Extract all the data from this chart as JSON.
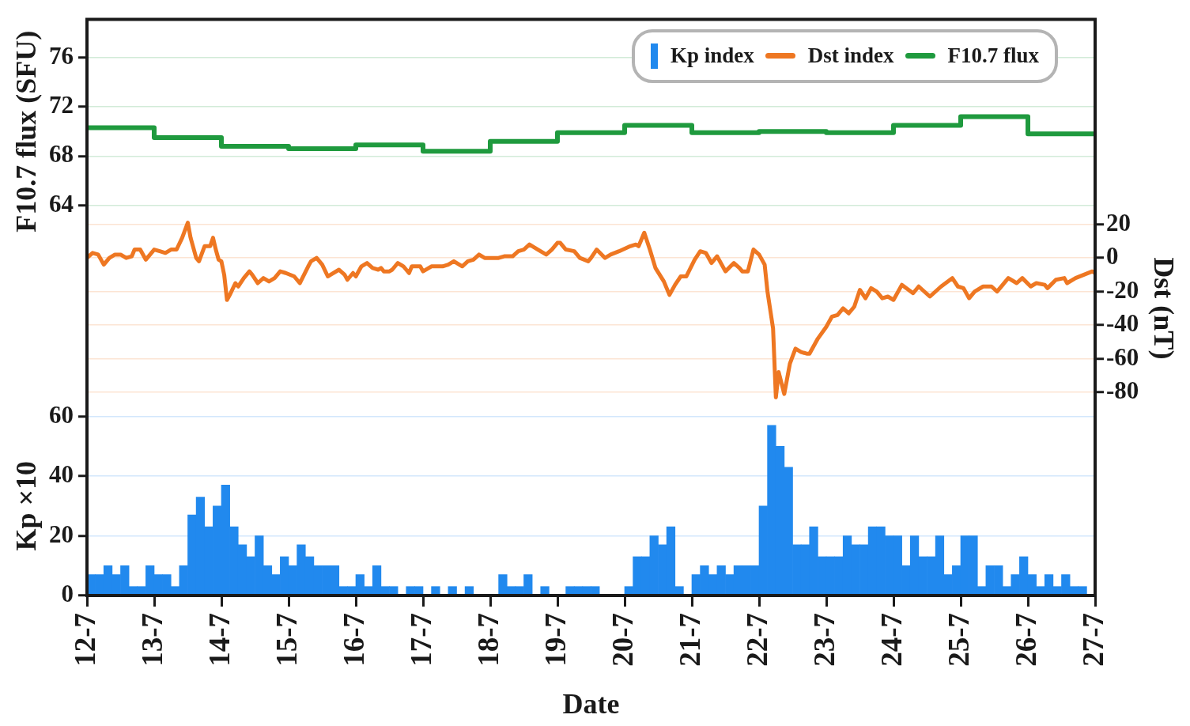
{
  "chart_data": {
    "type": "bar",
    "xlabel": "Date",
    "ylabel": "Kp ×10",
    "y2label": "Dst (nT)",
    "y3label": "F10.7 flux (SFU)",
    "xlim": [
      "--07-12",
      "--07-27"
    ],
    "xticks": [
      {
        "value": "--07-12",
        "label": "12-7"
      },
      {
        "value": "--07-13",
        "label": "13-7"
      },
      {
        "value": "--07-14",
        "label": "14-7"
      },
      {
        "value": "--07-15",
        "label": "15-7"
      },
      {
        "value": "--07-16",
        "label": "16-7"
      },
      {
        "value": "--07-17",
        "label": "17-7"
      },
      {
        "value": "--07-18",
        "label": "18-7"
      },
      {
        "value": "--07-19",
        "label": "19-7"
      },
      {
        "value": "--07-20",
        "label": "20-7"
      },
      {
        "value": "--07-21",
        "label": "21-7"
      },
      {
        "value": "--07-22",
        "label": "22-7"
      },
      {
        "value": "--07-23",
        "label": "23-7"
      },
      {
        "value": "--07-24",
        "label": "24-7"
      },
      {
        "value": "--07-25",
        "label": "25-7"
      },
      {
        "value": "--07-26",
        "label": "26-7"
      },
      {
        "value": "--07-27",
        "label": "27-7"
      }
    ],
    "ylim": [
      0,
      193
    ],
    "yticks": [
      0,
      20,
      40,
      60
    ],
    "y2lim": [
      -201,
      142
    ],
    "y2ticks": [
      -80,
      -60,
      -40,
      -20,
      0,
      20
    ],
    "y3lim": [
      32.3,
      79.1
    ],
    "y3ticks": [
      64,
      68,
      72,
      76
    ],
    "grid": "y",
    "legend": "top right",
    "series": [
      {
        "name": "Kp index",
        "color": "#2189ee",
        "x": [
          "--07-12T01:30",
          "--07-12T04:30",
          "--07-12T07:30",
          "--07-12T10:30",
          "--07-12T13:30",
          "--07-12T16:30",
          "--07-12T19:30",
          "--07-12T22:30",
          "--07-13T01:30",
          "--07-13T04:30",
          "--07-13T07:30",
          "--07-13T10:30",
          "--07-13T13:30",
          "--07-13T16:30",
          "--07-13T19:30",
          "--07-13T22:30",
          "--07-14T01:30",
          "--07-14T04:30",
          "--07-14T07:30",
          "--07-14T10:30",
          "--07-14T13:30",
          "--07-14T16:30",
          "--07-14T19:30",
          "--07-14T22:30",
          "--07-15T01:30",
          "--07-15T04:30",
          "--07-15T07:30",
          "--07-15T10:30",
          "--07-15T13:30",
          "--07-15T16:30",
          "--07-15T19:30",
          "--07-15T22:30",
          "--07-16T01:30",
          "--07-16T04:30",
          "--07-16T07:30",
          "--07-16T10:30",
          "--07-16T13:30",
          "--07-16T16:30",
          "--07-16T19:30",
          "--07-16T22:30",
          "--07-17T01:30",
          "--07-17T04:30",
          "--07-17T07:30",
          "--07-17T10:30",
          "--07-17T13:30",
          "--07-17T16:30",
          "--07-17T19:30",
          "--07-17T22:30",
          "--07-18T01:30",
          "--07-18T04:30",
          "--07-18T07:30",
          "--07-18T10:30",
          "--07-18T13:30",
          "--07-18T16:30",
          "--07-18T19:30",
          "--07-18T22:30",
          "--07-19T01:30",
          "--07-19T04:30",
          "--07-19T07:30",
          "--07-19T10:30",
          "--07-19T13:30",
          "--07-19T16:30",
          "--07-19T19:30",
          "--07-19T22:30",
          "--07-20T01:30",
          "--07-20T04:30",
          "--07-20T07:30",
          "--07-20T10:30",
          "--07-20T13:30",
          "--07-20T16:30",
          "--07-20T19:30",
          "--07-20T22:30",
          "--07-21T01:30",
          "--07-21T04:30",
          "--07-21T07:30",
          "--07-21T10:30",
          "--07-21T13:30",
          "--07-21T16:30",
          "--07-21T19:30",
          "--07-21T22:30",
          "--07-22T01:30",
          "--07-22T04:30",
          "--07-22T07:30",
          "--07-22T10:30",
          "--07-22T13:30",
          "--07-22T16:30",
          "--07-22T19:30",
          "--07-22T22:30",
          "--07-23T01:30",
          "--07-23T04:30",
          "--07-23T07:30",
          "--07-23T10:30",
          "--07-23T13:30",
          "--07-23T16:30",
          "--07-23T19:30",
          "--07-23T22:30",
          "--07-24T01:30",
          "--07-24T04:30",
          "--07-24T07:30",
          "--07-24T10:30",
          "--07-24T13:30",
          "--07-24T16:30",
          "--07-24T19:30",
          "--07-24T22:30",
          "--07-25T01:30",
          "--07-25T04:30",
          "--07-25T07:30",
          "--07-25T10:30",
          "--07-25T13:30",
          "--07-25T16:30",
          "--07-25T19:30",
          "--07-25T22:30",
          "--07-26T01:30",
          "--07-26T04:30",
          "--07-26T07:30",
          "--07-26T10:30",
          "--07-26T13:30",
          "--07-26T16:30",
          "--07-26T19:30",
          "--07-26T22:30"
        ],
        "values": [
          7,
          7,
          10,
          7,
          10,
          3,
          3,
          10,
          7,
          7,
          3,
          10,
          27,
          33,
          23,
          30,
          37,
          23,
          17,
          13,
          20,
          10,
          7,
          13,
          10,
          17,
          13,
          10,
          10,
          10,
          3,
          3,
          7,
          3,
          10,
          3,
          3,
          0,
          3,
          3,
          0,
          3,
          0,
          3,
          0,
          3,
          0,
          0,
          0,
          7,
          3,
          3,
          7,
          0,
          3,
          0,
          0,
          3,
          3,
          3,
          3,
          0,
          0,
          0,
          3,
          13,
          13,
          20,
          17,
          23,
          3,
          0,
          7,
          10,
          7,
          10,
          7,
          10,
          10,
          10,
          30,
          57,
          50,
          43,
          17,
          17,
          23,
          13,
          13,
          13,
          20,
          17,
          17,
          23,
          23,
          20,
          20,
          10,
          20,
          13,
          13,
          20,
          7,
          10,
          20,
          20,
          3,
          10,
          10,
          3,
          7,
          13,
          7,
          3,
          7,
          3,
          7,
          3,
          3,
          0
        ]
      },
      {
        "name": "Dst index",
        "type": "line",
        "axis": "y2",
        "color": "#ee7722",
        "x": [
          "--07-12T00:00",
          "--07-12T02:00",
          "--07-12T04:00",
          "--07-12T06:00",
          "--07-12T08:00",
          "--07-12T10:00",
          "--07-12T12:00",
          "--07-12T14:00",
          "--07-12T16:00",
          "--07-12T17:00",
          "--07-12T19:00",
          "--07-12T21:00",
          "--07-12T23:00",
          "--07-13T00:00",
          "--07-13T02:00",
          "--07-13T04:00",
          "--07-13T06:00",
          "--07-13T08:00",
          "--07-13T10:00",
          "--07-13T12:00",
          "--07-13T13:00",
          "--07-13T15:00",
          "--07-13T16:00",
          "--07-13T18:00",
          "--07-13T20:00",
          "--07-13T21:00",
          "--07-13T22:00",
          "--07-13T23:00",
          "--07-14T00:00",
          "--07-14T01:00",
          "--07-14T02:00",
          "--07-14T03:00",
          "--07-14T05:00",
          "--07-14T06:00",
          "--07-14T08:00",
          "--07-14T10:00",
          "--07-14T11:00",
          "--07-14T13:00",
          "--07-14T15:00",
          "--07-14T17:00",
          "--07-14T19:00",
          "--07-14T21:00",
          "--07-14T23:00",
          "--07-15T02:00",
          "--07-15T04:00",
          "--07-15T07:00",
          "--07-15T08:00",
          "--07-15T10:00",
          "--07-15T12:00",
          "--07-15T14:00",
          "--07-15T15:00",
          "--07-15T18:00",
          "--07-15T20:00",
          "--07-15T21:00",
          "--07-15T23:00",
          "--07-16T00:00",
          "--07-16T02:00",
          "--07-16T04:00",
          "--07-16T06:00",
          "--07-16T08:00",
          "--07-16T09:00",
          "--07-16T10:00",
          "--07-16T12:00",
          "--07-16T13:00",
          "--07-16T15:00",
          "--07-16T17:00",
          "--07-16T19:00",
          "--07-16T20:00",
          "--07-16T23:00",
          "--07-17T00:00",
          "--07-17T03:00",
          "--07-17T07:00",
          "--07-17T09:00",
          "--07-17T11:00",
          "--07-17T14:00",
          "--07-17T16:00",
          "--07-17T18:00",
          "--07-17T20:00",
          "--07-17T22:00",
          "--07-18T03:00",
          "--07-18T05:00",
          "--07-18T08:00",
          "--07-18T10:00",
          "--07-18T12:00",
          "--07-18T14:00",
          "--07-18T17:00",
          "--07-18T20:00",
          "--07-18T22:00",
          "--07-19T00:00",
          "--07-19T01:00",
          "--07-19T03:00",
          "--07-19T06:00",
          "--07-19T08:00",
          "--07-19T11:00",
          "--07-19T12:00",
          "--07-19T14:00",
          "--07-19T17:00",
          "--07-19T19:00",
          "--07-19T22:00",
          "--07-20T02:00",
          "--07-20T04:00",
          "--07-20T05:00",
          "--07-20T07:00",
          "--07-20T09:00",
          "--07-20T11:00",
          "--07-20T14:00",
          "--07-20T16:00",
          "--07-20T18:00",
          "--07-20T20:00",
          "--07-20T22:00",
          "--07-21T01:00",
          "--07-21T03:00",
          "--07-21T05:00",
          "--07-21T07:00",
          "--07-21T09:00",
          "--07-21T12:00",
          "--07-21T15:00",
          "--07-21T17:00",
          "--07-21T18:00",
          "--07-21T20:00",
          "--07-21T22:00",
          "--07-22T00:00",
          "--07-22T02:00",
          "--07-22T03:00",
          "--07-22T05:00",
          "--07-22T06:00",
          "--07-22T07:00",
          "--07-22T09:00",
          "--07-22T11:00",
          "--07-22T13:00",
          "--07-22T15:00",
          "--07-22T17:00",
          "--07-22T18:00",
          "--07-22T21:00",
          "--07-23T00:00",
          "--07-23T02:00",
          "--07-23T04:00",
          "--07-23T05:00",
          "--07-23T06:00",
          "--07-23T08:00",
          "--07-23T10:00",
          "--07-23T12:00",
          "--07-23T14:00",
          "--07-23T16:00",
          "--07-23T18:00",
          "--07-23T20:00",
          "--07-23T22:00",
          "--07-24T00:00",
          "--07-24T03:00",
          "--07-24T07:00",
          "--07-24T09:00",
          "--07-24T13:00",
          "--07-24T17:00",
          "--07-24T21:00",
          "--07-24T23:00",
          "--07-25T01:00",
          "--07-25T03:00",
          "--07-25T05:00",
          "--07-25T08:00",
          "--07-25T11:00",
          "--07-25T13:00",
          "--07-25T17:00",
          "--07-25T20:00",
          "--07-25T22:00",
          "--07-26T01:00",
          "--07-26T03:00",
          "--07-26T06:00",
          "--07-26T07:00",
          "--07-26T10:00",
          "--07-26T13:00",
          "--07-26T14:00",
          "--07-26T17:00",
          "--07-26T20:00",
          "--07-26T23:00",
          "--07-27T00:00"
        ],
        "values": [
          0,
          3,
          2,
          -4,
          0,
          2,
          2,
          0,
          1,
          5,
          5,
          -1,
          3,
          5,
          4,
          3,
          5,
          5,
          12,
          21,
          12,
          0,
          -2,
          7,
          7,
          12,
          5,
          -1,
          -2,
          -10,
          -25,
          -22,
          -15,
          -17,
          -12,
          -8,
          -10,
          -15,
          -12,
          -14,
          -12,
          -8,
          -9,
          -11,
          -15,
          -5,
          -2,
          0,
          -4,
          -11,
          -10,
          -7,
          -10,
          -13,
          -9,
          -11,
          -5,
          -3,
          -6,
          -7,
          -6,
          -8,
          -8,
          -7,
          -3,
          -5,
          -9,
          -5,
          -5,
          -8,
          -5,
          -5,
          -4,
          -2,
          -5,
          -2,
          -1,
          2,
          0,
          0,
          1,
          1,
          4,
          5,
          8,
          5,
          2,
          5,
          9,
          9,
          5,
          4,
          0,
          -2,
          0,
          5,
          0,
          2,
          4,
          7,
          8,
          7,
          15,
          5,
          -6,
          -14,
          -22,
          -16,
          -11,
          -11,
          -1,
          4,
          3,
          -3,
          1,
          -8,
          -3,
          -6,
          -8,
          -8,
          5,
          2,
          -4,
          -20,
          -42,
          -83,
          -68,
          -81,
          -63,
          -54,
          -56,
          -57,
          -57,
          -48,
          -41,
          -35,
          -34,
          -32,
          -30,
          -33,
          -29,
          -19,
          -24,
          -18,
          -20,
          -24,
          -23,
          -25,
          -16,
          -21,
          -17,
          -23,
          -17,
          -12,
          -17,
          -18,
          -24,
          -20,
          -17,
          -17,
          -20,
          -12,
          -15,
          -12,
          -17,
          -15,
          -16,
          -18,
          -13,
          -12,
          -15,
          -12,
          -10,
          -8,
          -9
        ]
      },
      {
        "name": "F10.7 flux",
        "type": "step",
        "axis": "y3",
        "color": "#1f9a3e",
        "x": [
          "--07-12",
          "--07-13",
          "--07-14",
          "--07-15",
          "--07-16",
          "--07-17",
          "--07-18",
          "--07-19",
          "--07-20",
          "--07-21",
          "--07-22",
          "--07-23",
          "--07-24",
          "--07-25",
          "--07-26",
          "--07-27"
        ],
        "values": [
          70.3,
          69.5,
          68.8,
          68.6,
          68.9,
          68.4,
          69.2,
          69.9,
          70.5,
          69.9,
          70.0,
          69.9,
          70.5,
          71.2,
          69.8,
          69.8
        ]
      }
    ]
  }
}
